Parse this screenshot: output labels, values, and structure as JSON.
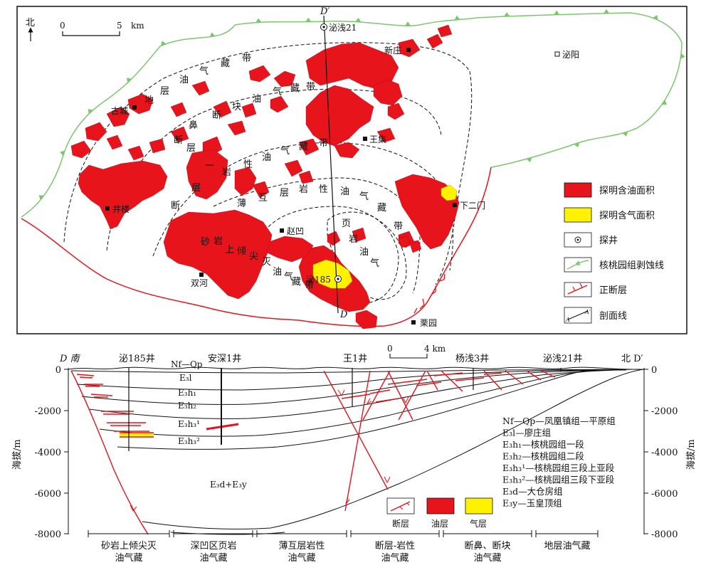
{
  "map": {
    "north_label": "北",
    "scale_zero": "0",
    "scale_five": "5",
    "scale_unit": "km",
    "section_end_top": "D′",
    "section_end_bottom": "D",
    "places": {
      "biqian21": "泌浅21",
      "xinzhuang": "新庄",
      "biyang": "泌阳",
      "gucheng": "古城",
      "wangji": "王集",
      "jinglou": "井楼",
      "xiaermen": "下二门",
      "zhaoao": "赵凹",
      "bi185": "泌185",
      "shuanghe": "双河",
      "liyuan": "栗园"
    },
    "zone_labels": {
      "zone1": [
        "地",
        "层",
        "油",
        "气",
        "藏",
        "带"
      ],
      "zone2": [
        "鼻",
        "断",
        "块",
        "油",
        "气",
        "藏",
        "带"
      ],
      "zone3": [
        "断",
        "层",
        "一",
        "岩",
        "性",
        "油",
        "气",
        "藏",
        "带"
      ],
      "zone4": [
        "断",
        "层",
        "薄",
        "互",
        "层",
        "岩",
        "性",
        "油",
        "气",
        "藏",
        "带"
      ],
      "zone5": [
        "页",
        "岩",
        "油",
        "气",
        "藏"
      ],
      "zone6": [
        "砂",
        "岩",
        "上",
        "倾",
        "尖",
        "灭",
        "油",
        "气",
        "藏",
        "带"
      ]
    },
    "legend": {
      "oil": "探明含油面积",
      "gas": "探明含气面积",
      "well": "探井",
      "erosion": "核桃园组剥蚀线",
      "fault": "正断层",
      "section": "剖面线",
      "section_a": "A",
      "section_a2": "A′"
    },
    "colors": {
      "oil": "#e8141c",
      "gas": "#fff200",
      "erosion_line": "#7cc66e",
      "fault": "#e8141c"
    }
  },
  "section": {
    "left_end": "D 南",
    "right_end": "北 D′",
    "wells": [
      "泌185井",
      "安深1井",
      "王1井",
      "杨浅3井",
      "泌浅21井"
    ],
    "scale_zero": "0",
    "scale_four": "4 km",
    "y_axis_label": "海拔/m",
    "y_ticks": [
      "0",
      "-2000",
      "-4000",
      "-6000",
      "-8000"
    ],
    "strata": {
      "nfqp": "Nf—Qp",
      "e3l": "E₃l",
      "e3h1": "E₃h₁",
      "e3h2": "E₃h₂",
      "e3h31": "E₃h₃¹",
      "e3h32": "E₃h₃²",
      "e3dy": "E₃d+E₃y"
    },
    "formation_notes": [
      "Nf—Qp—凤凰镇组—平原组",
      "E₃l—廖庄组",
      "E₃h₁—核桃园组一段",
      "E₃h₂—核桃园组二段",
      "E₃h₃¹—核桃园组三段上亚段",
      "E₃h₃²—核桃园组三段下亚段",
      "E₃d—大仓房组",
      "E₃y—玉皇顶组"
    ],
    "legend": {
      "fault": "断层",
      "oil": "油层",
      "gas": "气层"
    },
    "plays": [
      [
        "砂岩上倾尖灭",
        "油气藏"
      ],
      [
        "深凹区页岩",
        "油气藏"
      ],
      [
        "薄互层岩性",
        "油气藏"
      ],
      [
        "断层-岩性",
        "油气藏"
      ],
      [
        "断鼻、断块",
        "油气藏"
      ],
      [
        "地层油气藏"
      ]
    ]
  }
}
